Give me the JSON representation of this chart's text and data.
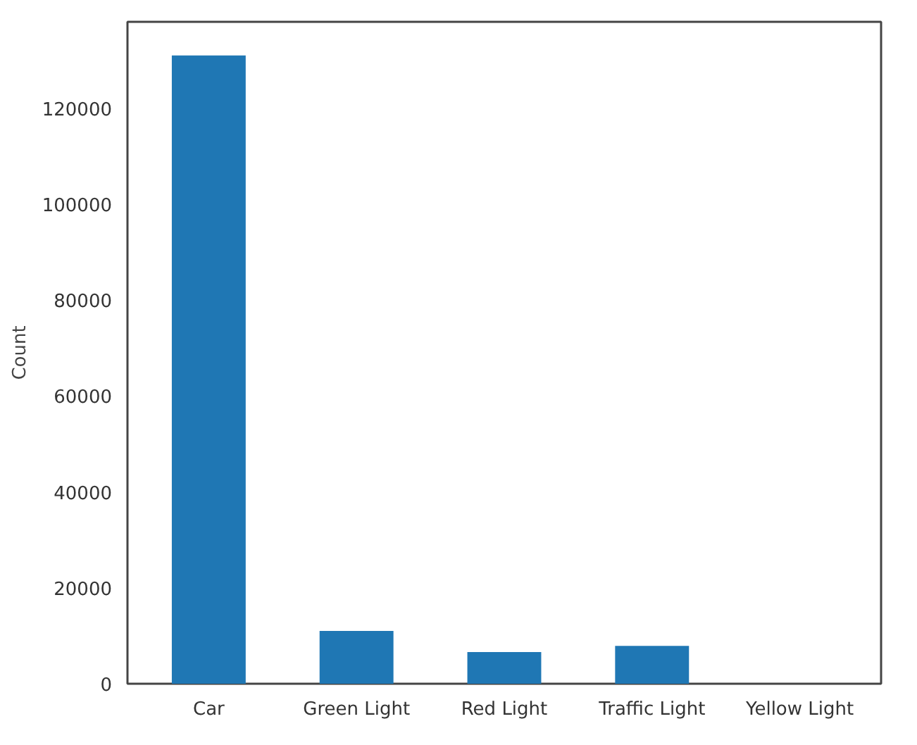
{
  "chart_data": {
    "type": "bar",
    "ylabel": "Count",
    "categories": [
      "Car",
      "Green Light",
      "Red Light",
      "Traffic Light",
      "Yellow Light"
    ],
    "values": [
      131000,
      11000,
      6600,
      7900,
      0
    ],
    "color": "#1f77b4",
    "ylim": [
      0,
      138000
    ],
    "yticks": [
      0,
      20000,
      40000,
      60000,
      80000,
      100000,
      120000
    ],
    "grid": false
  }
}
